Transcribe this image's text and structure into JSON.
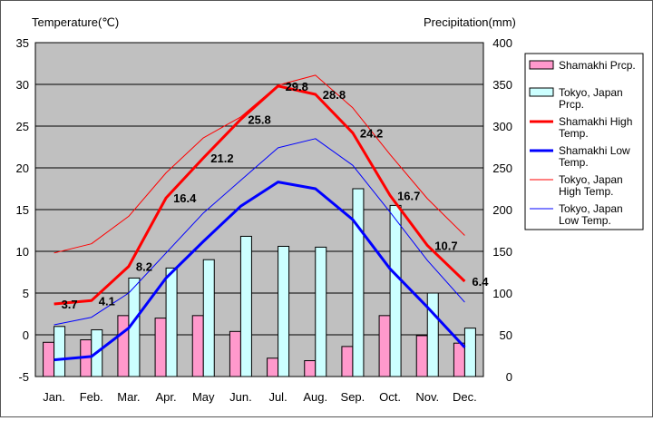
{
  "chart_data": {
    "type": "bar",
    "y_left_label": "Temperature(℃)",
    "y_right_label": "Precipitation(mm)",
    "categories": [
      "Jan.",
      "Feb.",
      "Mar.",
      "Apr.",
      "May",
      "Jun.",
      "Jul.",
      "Aug.",
      "Sep.",
      "Oct.",
      "Nov.",
      "Dec."
    ],
    "ylim_left": [
      -5,
      35
    ],
    "ylim_right": [
      0,
      400
    ],
    "left_ticks": [
      "35",
      "30",
      "25",
      "20",
      "15",
      "10",
      "5",
      "0",
      "-5"
    ],
    "right_ticks": [
      "400",
      "350",
      "300",
      "250",
      "200",
      "150",
      "100",
      "50",
      "0"
    ],
    "grid": true,
    "legend_position": "right",
    "bar_series": [
      {
        "name": "Shamakhi Prcp.",
        "color": "#ff99cc",
        "axis": "right",
        "values": [
          41,
          44,
          73,
          70,
          73,
          54,
          22,
          19,
          36,
          73,
          49,
          40
        ]
      },
      {
        "name": "Tokyo, Japan Prcp.",
        "color": "#ccffff",
        "axis": "right",
        "values": [
          60,
          56,
          118,
          130,
          140,
          168,
          156,
          155,
          225,
          205,
          100,
          58
        ]
      }
    ],
    "line_series": [
      {
        "name": "Shamakhi High Temp.",
        "color": "#ff0000",
        "width": "thick",
        "axis": "left",
        "values": [
          3.7,
          4.1,
          8.2,
          16.4,
          21.2,
          25.8,
          29.8,
          28.8,
          24.2,
          16.7,
          10.7,
          6.4
        ],
        "labels": [
          "3.7",
          "4.1",
          "8.2",
          "16.4",
          "21.2",
          "25.8",
          "29.8",
          "28.8",
          "24.2",
          "16.7",
          "10.7",
          "6.4"
        ]
      },
      {
        "name": "Shamakhi Low Temp.",
        "color": "#0000ff",
        "width": "thick",
        "axis": "left",
        "values": [
          -3.0,
          -2.6,
          0.8,
          6.8,
          11.2,
          15.4,
          18.3,
          17.5,
          13.8,
          7.9,
          3.3,
          -1.5
        ],
        "labels": []
      },
      {
        "name": "Tokyo, Japan High Temp.",
        "color": "#ff0000",
        "width": "thin",
        "axis": "left",
        "values": [
          9.8,
          10.9,
          14.2,
          19.4,
          23.6,
          26.1,
          29.9,
          31.1,
          27.2,
          21.6,
          16.3,
          11.9
        ],
        "labels": []
      },
      {
        "name": "Tokyo, Japan Low Temp.",
        "color": "#0000ff",
        "width": "thin",
        "axis": "left",
        "values": [
          1.2,
          2.1,
          5.0,
          9.8,
          14.6,
          18.5,
          22.4,
          23.5,
          20.3,
          14.7,
          8.9,
          3.9
        ],
        "labels": []
      }
    ],
    "legend": [
      {
        "key": "shamakhi-prcp",
        "type": "bar",
        "color": "#ff99cc",
        "lines": [
          "Shamakhi Prcp."
        ]
      },
      {
        "key": "tokyo-prcp",
        "type": "bar",
        "color": "#ccffff",
        "lines": [
          "Tokyo, Japan",
          "Prcp."
        ]
      },
      {
        "key": "shamakhi-high",
        "type": "line",
        "color": "#ff0000",
        "width": "thick",
        "lines": [
          "Shamakhi High",
          "Temp."
        ]
      },
      {
        "key": "shamakhi-low",
        "type": "line",
        "color": "#0000ff",
        "width": "thick",
        "lines": [
          "Shamakhi Low",
          "Temp."
        ]
      },
      {
        "key": "tokyo-high",
        "type": "line",
        "color": "#ff0000",
        "width": "thin",
        "lines": [
          "Tokyo, Japan",
          "High Temp."
        ]
      },
      {
        "key": "tokyo-low",
        "type": "line",
        "color": "#0000ff",
        "width": "thin",
        "lines": [
          "Tokyo, Japan",
          "Low Temp."
        ]
      }
    ]
  }
}
